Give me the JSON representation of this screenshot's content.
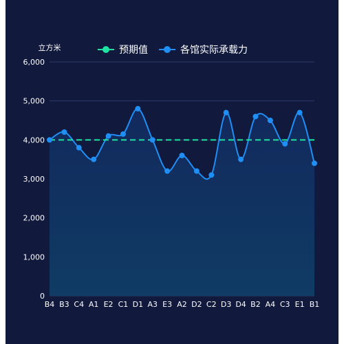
{
  "chart_data": {
    "type": "line",
    "unit_label": "立方米",
    "categories": [
      "B4",
      "B3",
      "C4",
      "A1",
      "E2",
      "C1",
      "D1",
      "A3",
      "E3",
      "A2",
      "D2",
      "C2",
      "D3",
      "D4",
      "B2",
      "A4",
      "C3",
      "E1",
      "B1"
    ],
    "series": [
      {
        "name": "预期值",
        "values": [
          4000,
          4000,
          4000,
          4000,
          4000,
          4000,
          4000,
          4000,
          4000,
          4000,
          4000,
          4000,
          4000,
          4000,
          4000,
          4000,
          4000,
          4000,
          4000
        ],
        "color": "#1fe3a0",
        "style": "dashed"
      },
      {
        "name": "各馆实际承载力",
        "values": [
          4000,
          4200,
          3800,
          3500,
          4100,
          4150,
          4800,
          4000,
          3200,
          3600,
          3200,
          3100,
          4700,
          3500,
          4600,
          4500,
          3900,
          4700,
          3400
        ],
        "color": "#1f8ff5",
        "style": "smooth-area"
      }
    ],
    "yticks": [
      "0",
      "1,000",
      "2,000",
      "3,000",
      "4,000",
      "5,000",
      "6,000"
    ],
    "ylim": [
      0,
      6000
    ],
    "grid": true,
    "legend_position": "top-center",
    "colors": {
      "background": "#11193c",
      "grid": "#2a3a6b",
      "area_top": "#12295e",
      "area_bottom": "#0f3a64"
    }
  }
}
